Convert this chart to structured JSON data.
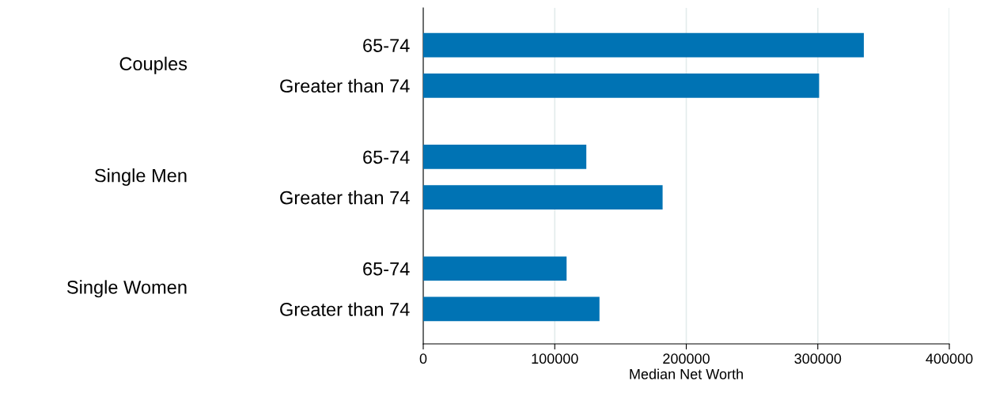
{
  "chart_data": {
    "type": "bar",
    "orientation": "horizontal",
    "categories": [
      "65-74",
      "Greater than 74",
      "65-74",
      "Greater than 74",
      "65-74",
      "Greater than 74"
    ],
    "values": [
      335000,
      301000,
      124000,
      182000,
      109000,
      134000
    ],
    "color": "#0073b4",
    "annotations": [
      "Couples",
      "Single Men",
      "Single Women"
    ],
    "xlabel": "Median Net Worth",
    "xlim": [
      0,
      400000
    ],
    "xticks": [
      0,
      100000,
      200000,
      300000,
      400000
    ],
    "grid": "x"
  }
}
